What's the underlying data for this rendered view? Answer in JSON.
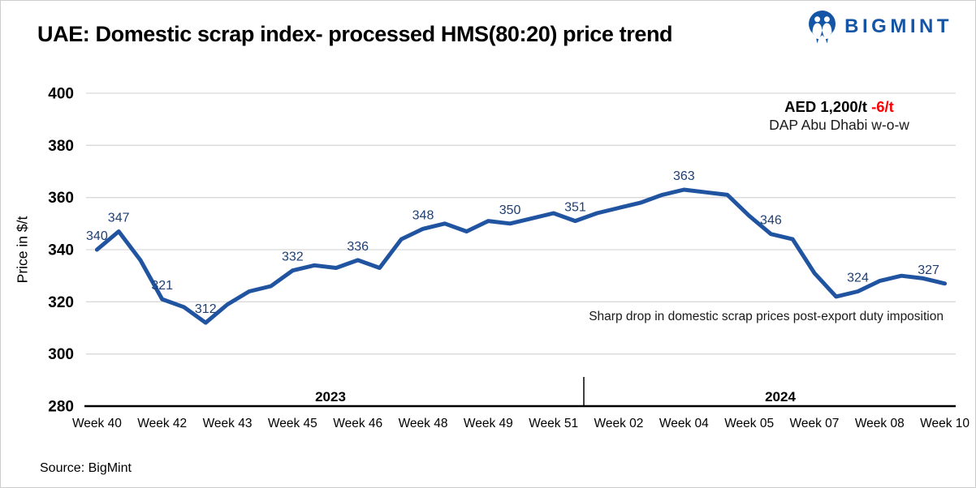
{
  "header": {
    "title": "UAE: Domestic scrap index- processed HMS(80:20) price trend"
  },
  "logo": {
    "text": "BIGMINT",
    "color": "#1455A6"
  },
  "chart_data": {
    "type": "line",
    "title": "UAE: Domestic scrap index- processed HMS(80:20) price trend",
    "xlabel": "",
    "ylabel": "Price in $/t",
    "ylim": [
      280,
      400
    ],
    "yticks": [
      280,
      300,
      320,
      340,
      360,
      380,
      400
    ],
    "grid": "horizontal",
    "legend": "none",
    "line_color": "#2054A0",
    "label_color": "#1F3E72",
    "x_tick_labels": [
      "Week 40",
      "Week 42",
      "Week 43",
      "Week 45",
      "Week 46",
      "Week 48",
      "Week 49",
      "Week 51",
      "Week 02",
      "Week 04",
      "Week 05",
      "Week 07",
      "Week 08",
      "Week 10"
    ],
    "x_tick_every_nth_point": 3,
    "values": [
      340,
      347,
      336,
      321,
      318,
      312,
      319,
      324,
      326,
      332,
      334,
      333,
      336,
      333,
      344,
      348,
      350,
      347,
      351,
      350,
      352,
      354,
      351,
      354,
      356,
      358,
      361,
      363,
      362,
      361,
      353,
      346,
      344,
      331,
      322,
      324,
      328,
      330,
      329,
      327
    ],
    "point_labels": [
      340,
      347,
      null,
      321,
      null,
      312,
      null,
      null,
      null,
      332,
      null,
      null,
      336,
      null,
      null,
      348,
      null,
      null,
      null,
      350,
      null,
      null,
      351,
      null,
      null,
      null,
      null,
      363,
      null,
      null,
      null,
      346,
      null,
      null,
      null,
      324,
      null,
      null,
      null,
      327
    ],
    "year_groups": [
      "2023",
      "2024"
    ]
  },
  "annotations": {
    "price_main": "AED 1,200/t",
    "price_change": "-6/t",
    "price_change_color": "#FF0000",
    "price_sub": "DAP Abu Dhabi w-o-w",
    "note": "Sharp drop in domestic scrap prices post-export duty imposition"
  },
  "footer": {
    "source": "Source: BigMint"
  }
}
